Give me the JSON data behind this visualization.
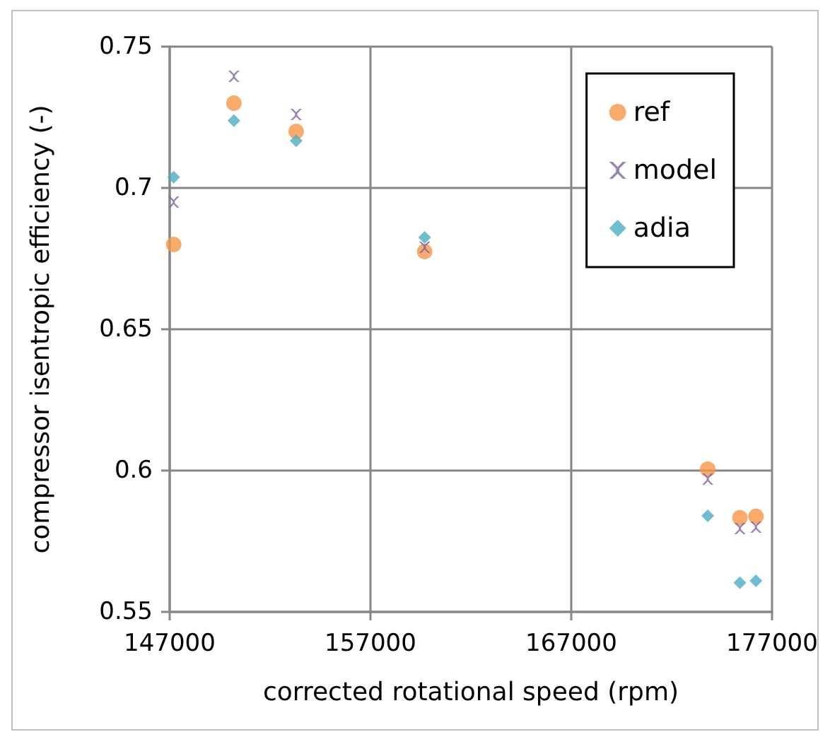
{
  "chart_data": {
    "type": "scatter",
    "xlabel": "corrected rotational speed (rpm)",
    "ylabel": "compressor isentropic efficiency (-)",
    "x": [
      147200,
      150200,
      153300,
      159700,
      173800,
      175400,
      176200
    ],
    "series": [
      {
        "name": "ref",
        "color": "#f79646",
        "marker": "circle",
        "values": [
          0.68,
          0.73,
          0.72,
          0.6775,
          0.6005,
          0.5833,
          0.5838
        ]
      },
      {
        "name": "model",
        "color": "#8064a2",
        "marker": "cross",
        "values": [
          0.695,
          0.7395,
          0.726,
          0.679,
          0.597,
          0.5795,
          0.58
        ]
      },
      {
        "name": "adia",
        "color": "#4bacc6",
        "marker": "diamond",
        "values": [
          0.7038,
          0.7238,
          0.7167,
          0.6825,
          0.584,
          0.5603,
          0.561
        ]
      }
    ],
    "xlim": [
      147000,
      177000
    ],
    "xticks": [
      147000,
      157000,
      167000,
      177000
    ],
    "ylim": [
      0.55,
      0.75
    ],
    "yticks": [
      0.55,
      0.6,
      0.65,
      0.7,
      0.75
    ],
    "grid": true,
    "legend": "top right"
  }
}
